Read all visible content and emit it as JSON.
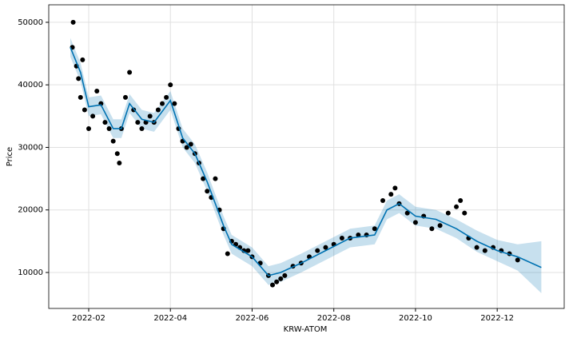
{
  "chart_data": {
    "type": "forecast",
    "xlabel": "KRW-ATOM",
    "ylabel": "Price",
    "xlim": [
      0.022,
      12.64
    ],
    "ylim": [
      4250,
      52800
    ],
    "xticks": [
      {
        "value": 1,
        "label": "2022-02"
      },
      {
        "value": 3,
        "label": "2022-04"
      },
      {
        "value": 5,
        "label": "2022-06"
      },
      {
        "value": 7,
        "label": "2022-08"
      },
      {
        "value": 9,
        "label": "2022-10"
      },
      {
        "value": 11,
        "label": "2022-12"
      }
    ],
    "yticks": [
      10000,
      20000,
      30000,
      40000,
      50000
    ],
    "grid": true,
    "points": {
      "color": "#000000",
      "x": [
        0.6,
        0.62,
        0.7,
        0.75,
        0.8,
        0.85,
        0.9,
        1.0,
        1.1,
        1.2,
        1.3,
        1.4,
        1.5,
        1.6,
        1.7,
        1.75,
        1.8,
        1.9,
        2.0,
        2.1,
        2.2,
        2.3,
        2.4,
        2.5,
        2.6,
        2.7,
        2.8,
        2.9,
        3.0,
        3.1,
        3.2,
        3.3,
        3.4,
        3.5,
        3.6,
        3.7,
        3.8,
        3.9,
        4.0,
        4.1,
        4.2,
        4.3,
        4.4,
        4.5,
        4.6,
        4.7,
        4.8,
        4.9,
        5.0,
        5.2,
        5.4,
        5.5,
        5.6,
        5.7,
        5.8,
        6.0,
        6.2,
        6.4,
        6.6,
        6.8,
        7.0,
        7.2,
        7.4,
        7.6,
        7.8,
        8.0,
        8.2,
        8.4,
        8.5,
        8.6,
        8.8,
        9.0,
        9.2,
        9.4,
        9.6,
        9.8,
        10.0,
        10.1,
        10.2,
        10.3,
        10.5,
        10.7,
        10.9,
        11.1,
        11.3,
        11.5
      ],
      "values": [
        46000,
        50000,
        43000,
        41000,
        38000,
        44000,
        36000,
        33000,
        35000,
        39000,
        37000,
        34000,
        33000,
        31000,
        29000,
        27500,
        33000,
        38000,
        42000,
        36000,
        34000,
        33000,
        34000,
        35000,
        34000,
        36000,
        37000,
        38000,
        40000,
        37000,
        33000,
        31000,
        30000,
        30500,
        29000,
        27500,
        25000,
        23000,
        22000,
        25000,
        20000,
        17000,
        13000,
        15000,
        14500,
        14000,
        13500,
        13500,
        12500,
        11500,
        9500,
        8000,
        8500,
        9000,
        9500,
        11000,
        11500,
        12500,
        13500,
        14000,
        14500,
        15500,
        15500,
        16000,
        16000,
        17000,
        21500,
        22500,
        23500,
        21000,
        19500,
        18000,
        19000,
        17000,
        17500,
        19500,
        20500,
        21500,
        19500,
        15500,
        14000,
        13500,
        14000,
        13500,
        13000,
        12000
      ]
    },
    "forecast": {
      "color": "#0072b2",
      "x": [
        0.55,
        0.8,
        1.0,
        1.3,
        1.6,
        1.8,
        2.0,
        2.3,
        2.6,
        3.0,
        3.3,
        3.6,
        3.9,
        4.3,
        4.5,
        5.0,
        5.4,
        5.7,
        6.2,
        6.8,
        7.4,
        8.0,
        8.3,
        8.6,
        9.0,
        9.5,
        10.0,
        10.5,
        11.0,
        11.5,
        12.08
      ],
      "values": [
        46000,
        42000,
        36500,
        36800,
        33000,
        33000,
        37000,
        34500,
        34000,
        37500,
        31500,
        29000,
        24500,
        17500,
        14500,
        12500,
        9500,
        10000,
        11500,
        13500,
        15500,
        16000,
        20000,
        21000,
        19000,
        18500,
        17000,
        15000,
        13500,
        12500,
        10800
      ],
      "lower": [
        44500,
        40500,
        35000,
        35300,
        31500,
        31500,
        35500,
        33000,
        32500,
        36000,
        30000,
        27500,
        23000,
        16000,
        13000,
        11000,
        8000,
        8500,
        10000,
        12000,
        14000,
        14500,
        18500,
        19500,
        17500,
        17000,
        15500,
        13300,
        11800,
        10300,
        6700
      ],
      "upper": [
        47500,
        43500,
        38000,
        38300,
        34500,
        34500,
        38500,
        36000,
        35500,
        39000,
        33000,
        30500,
        26000,
        19000,
        16000,
        14000,
        11000,
        11500,
        13000,
        15000,
        17000,
        17500,
        21500,
        22500,
        20500,
        20000,
        18500,
        16700,
        15200,
        14500,
        15000
      ]
    }
  }
}
